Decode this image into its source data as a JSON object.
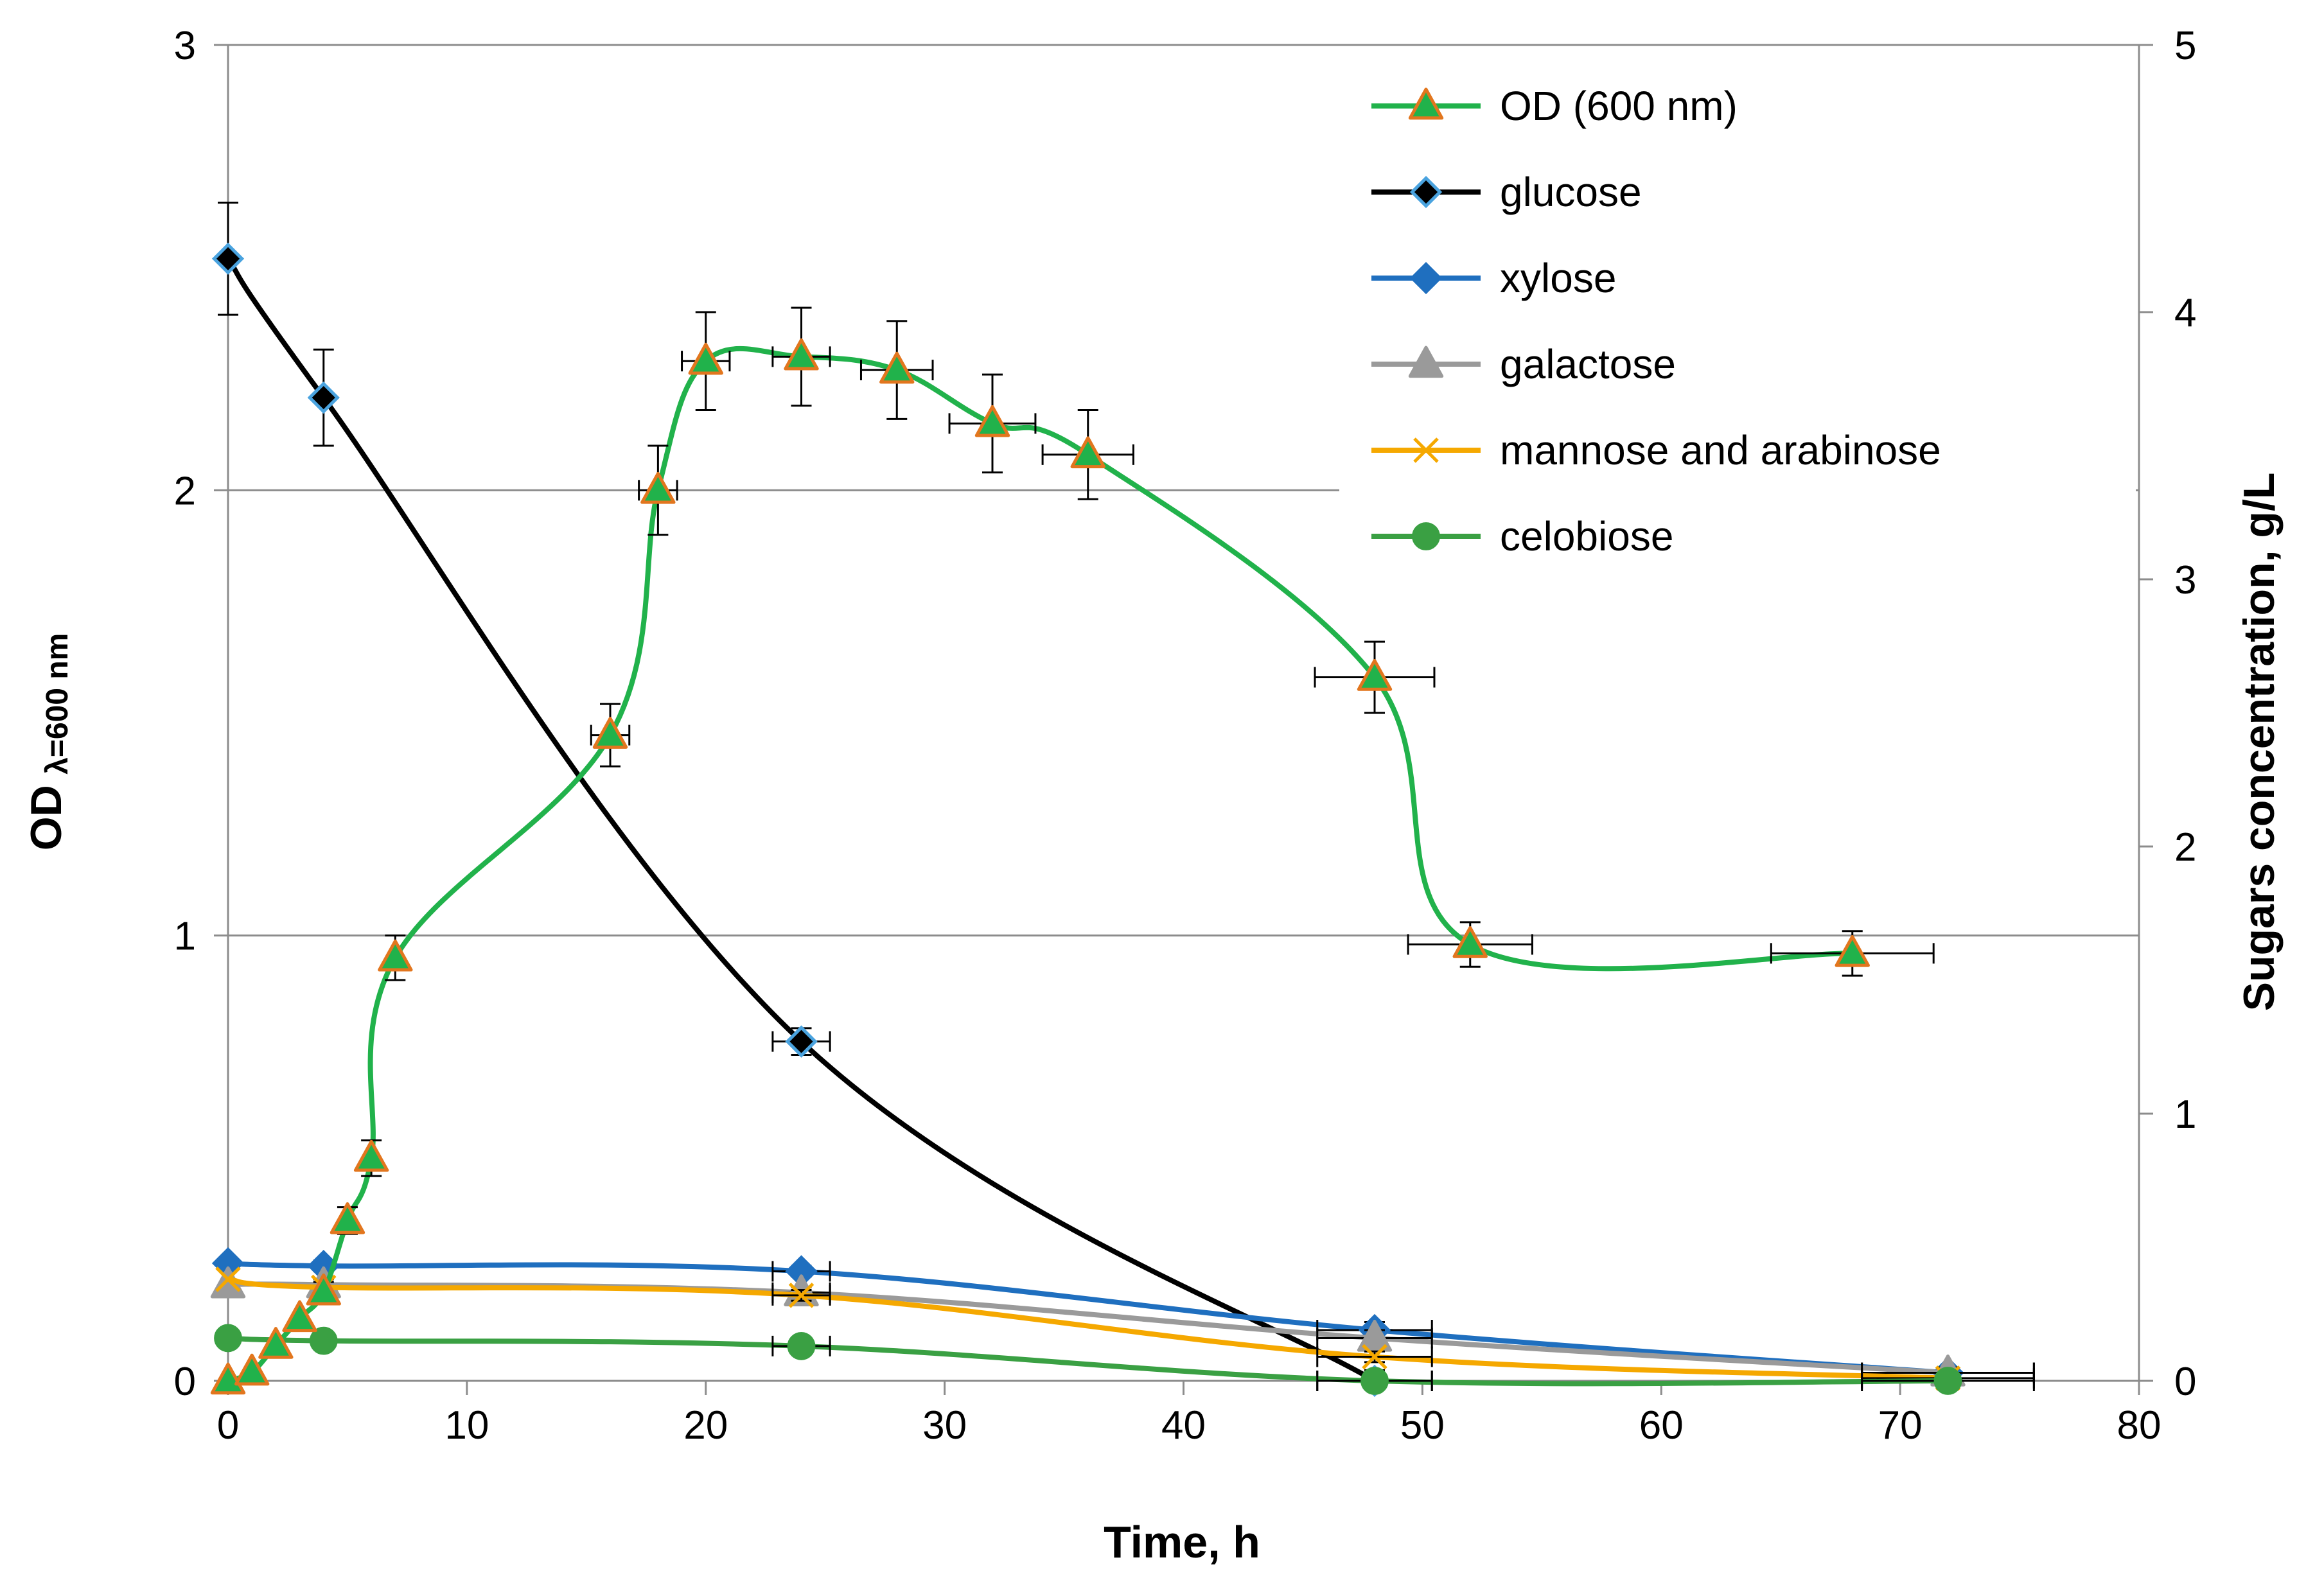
{
  "chart_data": {
    "type": "line",
    "title": "",
    "xlabel": "Time, h",
    "ylabel_left_main": "OD",
    "ylabel_left_sub": "λ=600 nm",
    "ylabel_right": "Sugars concentration, g/L",
    "xlim": [
      0,
      80
    ],
    "ylim_left": [
      0,
      3
    ],
    "ylim_right": [
      0,
      5
    ],
    "x_ticks": [
      0,
      10,
      20,
      30,
      40,
      50,
      60,
      70,
      80
    ],
    "x_tick_labels": [
      "0",
      "10",
      "20",
      "30",
      "40",
      "50",
      "60",
      "70",
      "80"
    ],
    "y_left_ticks": [
      0,
      1,
      2,
      3
    ],
    "y_left_tick_labels": [
      "0",
      "1",
      "2",
      "3"
    ],
    "y_right_ticks": [
      0,
      1,
      2,
      3,
      4,
      5
    ],
    "y_right_tick_labels": [
      "0",
      "1",
      "2",
      "3",
      "4",
      "5"
    ],
    "grid": "horizontal major lines on left axis",
    "legend_position": "top-right",
    "series": [
      {
        "name": "OD (600 nm)",
        "axis": "left",
        "color": "#21b24b",
        "marker": "triangle",
        "marker_fill": "#21b24b",
        "marker_edge": "#e2761e",
        "x": [
          0,
          1,
          2,
          3,
          4,
          5,
          6,
          7,
          16,
          18,
          20,
          24,
          28,
          32,
          36,
          48,
          52,
          68
        ],
        "y": [
          0,
          0.02,
          0.08,
          0.14,
          0.2,
          0.36,
          0.5,
          0.95,
          1.45,
          2.0,
          2.29,
          2.3,
          2.27,
          2.15,
          2.08,
          1.58,
          0.98,
          0.96
        ],
        "y_err": [
          0,
          0,
          0,
          0,
          0,
          0.03,
          0.04,
          0.05,
          0.07,
          0.1,
          0.11,
          0.11,
          0.11,
          0.11,
          0.1,
          0.08,
          0.05,
          0.05
        ],
        "x_err": [
          0,
          0,
          0,
          0,
          0,
          0,
          0,
          0,
          0.8,
          0.8,
          1.0,
          1.2,
          1.5,
          1.8,
          1.9,
          2.5,
          2.6,
          3.4
        ]
      },
      {
        "name": "glucose",
        "axis": "right",
        "color": "#000000",
        "marker": "diamond",
        "marker_fill": "#000000",
        "marker_edge": "#4aa3df",
        "x": [
          0,
          4,
          24,
          48
        ],
        "y": [
          4.2,
          3.68,
          1.27,
          0
        ],
        "y_err": [
          0.21,
          0.18,
          0.05,
          0.04
        ],
        "x_err": [
          0,
          0,
          1.2,
          2.4
        ]
      },
      {
        "name": "xylose",
        "axis": "right",
        "color": "#1f6fbf",
        "marker": "diamond",
        "marker_fill": "#1f6fbf",
        "marker_edge": "#1f6fbf",
        "x": [
          0,
          4,
          24,
          48,
          72
        ],
        "y": [
          0.44,
          0.43,
          0.41,
          0.19,
          0.03
        ],
        "y_err": [
          0,
          0.02,
          0.02,
          0.03,
          0.02
        ],
        "x_err": [
          0,
          0,
          1.2,
          2.4,
          3.6
        ]
      },
      {
        "name": "galactose",
        "axis": "right",
        "color": "#9a9a9a",
        "marker": "triangle",
        "marker_fill": "#9a9a9a",
        "marker_edge": "#9a9a9a",
        "x": [
          0,
          4,
          24,
          48,
          72
        ],
        "y": [
          0.36,
          0.36,
          0.33,
          0.16,
          0.03
        ],
        "y_err": [
          0,
          0.02,
          0.02,
          0.03,
          0.02
        ],
        "x_err": [
          0,
          0,
          1.2,
          2.4,
          3.6
        ]
      },
      {
        "name": "mannose and arabinose",
        "axis": "right",
        "color": "#f5a800",
        "marker": "x",
        "marker_fill": "#f5a800",
        "marker_edge": "#f5a800",
        "x": [
          0,
          4,
          24,
          48,
          72
        ],
        "y": [
          0.38,
          0.35,
          0.32,
          0.09,
          0.01
        ],
        "y_err": [
          0,
          0.02,
          0.02,
          0.02,
          0.01
        ],
        "x_err": [
          0,
          0,
          1.2,
          2.4,
          3.6
        ]
      },
      {
        "name": "celobiose",
        "axis": "right",
        "color": "#3aa043",
        "marker": "circle",
        "marker_fill": "#3aa043",
        "marker_edge": "#3aa043",
        "x": [
          0,
          4,
          24,
          48,
          72
        ],
        "y": [
          0.16,
          0.15,
          0.13,
          0,
          0
        ],
        "y_err": [
          0,
          0.01,
          0.01,
          0.01,
          0.01
        ],
        "x_err": [
          0,
          0,
          1.2,
          2.4,
          3.6
        ]
      }
    ]
  }
}
